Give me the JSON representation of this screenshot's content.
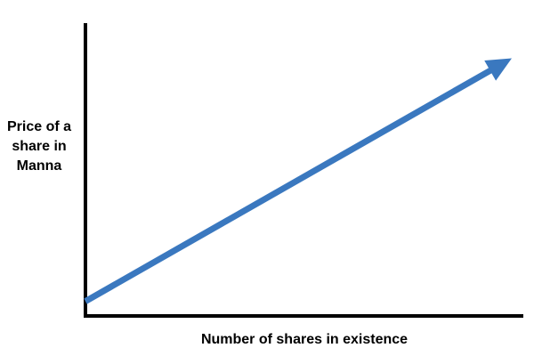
{
  "chart_data": {
    "type": "line",
    "title": "",
    "xlabel": "Number of shares in existence",
    "ylabel_lines": [
      "Price of a",
      "share in",
      "Manna"
    ],
    "ticks": "none",
    "grid": false,
    "legend": "none",
    "series": [
      {
        "trend": "increasing",
        "style": "arrow",
        "color": "#3a78bf",
        "x": [
          0,
          1
        ],
        "y": [
          0.05,
          0.88
        ]
      }
    ],
    "xlim": [
      0,
      1
    ],
    "ylim": [
      0,
      1
    ],
    "axis_color": "#000000"
  }
}
